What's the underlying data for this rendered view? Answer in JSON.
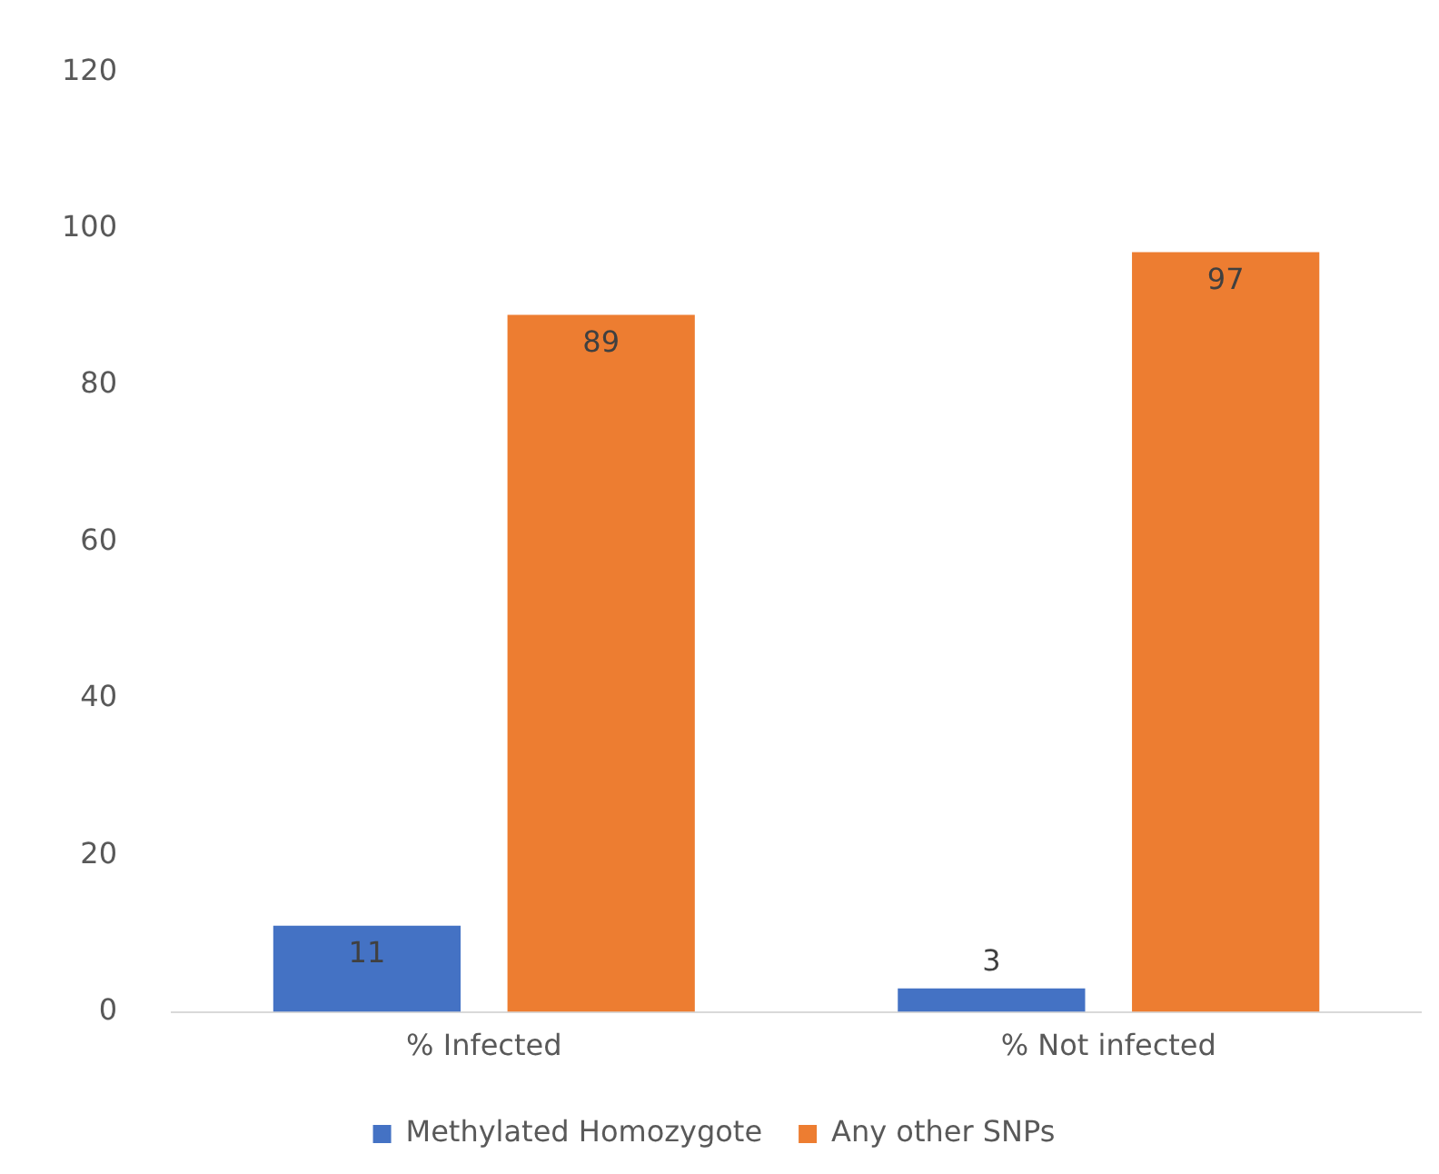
{
  "chart_data": {
    "type": "bar",
    "categories": [
      "% Infected",
      "% Not infected"
    ],
    "series": [
      {
        "name": "Methylated Homozygote",
        "color": "#4472c4",
        "values": [
          11,
          3
        ]
      },
      {
        "name": "Any other SNPs",
        "color": "#ed7d31",
        "values": [
          89,
          97
        ]
      }
    ],
    "ylim": [
      0,
      120
    ],
    "yticks": [
      0,
      20,
      40,
      60,
      80,
      100,
      120
    ],
    "grid": false,
    "legend": "bottom",
    "data_labels": true
  }
}
